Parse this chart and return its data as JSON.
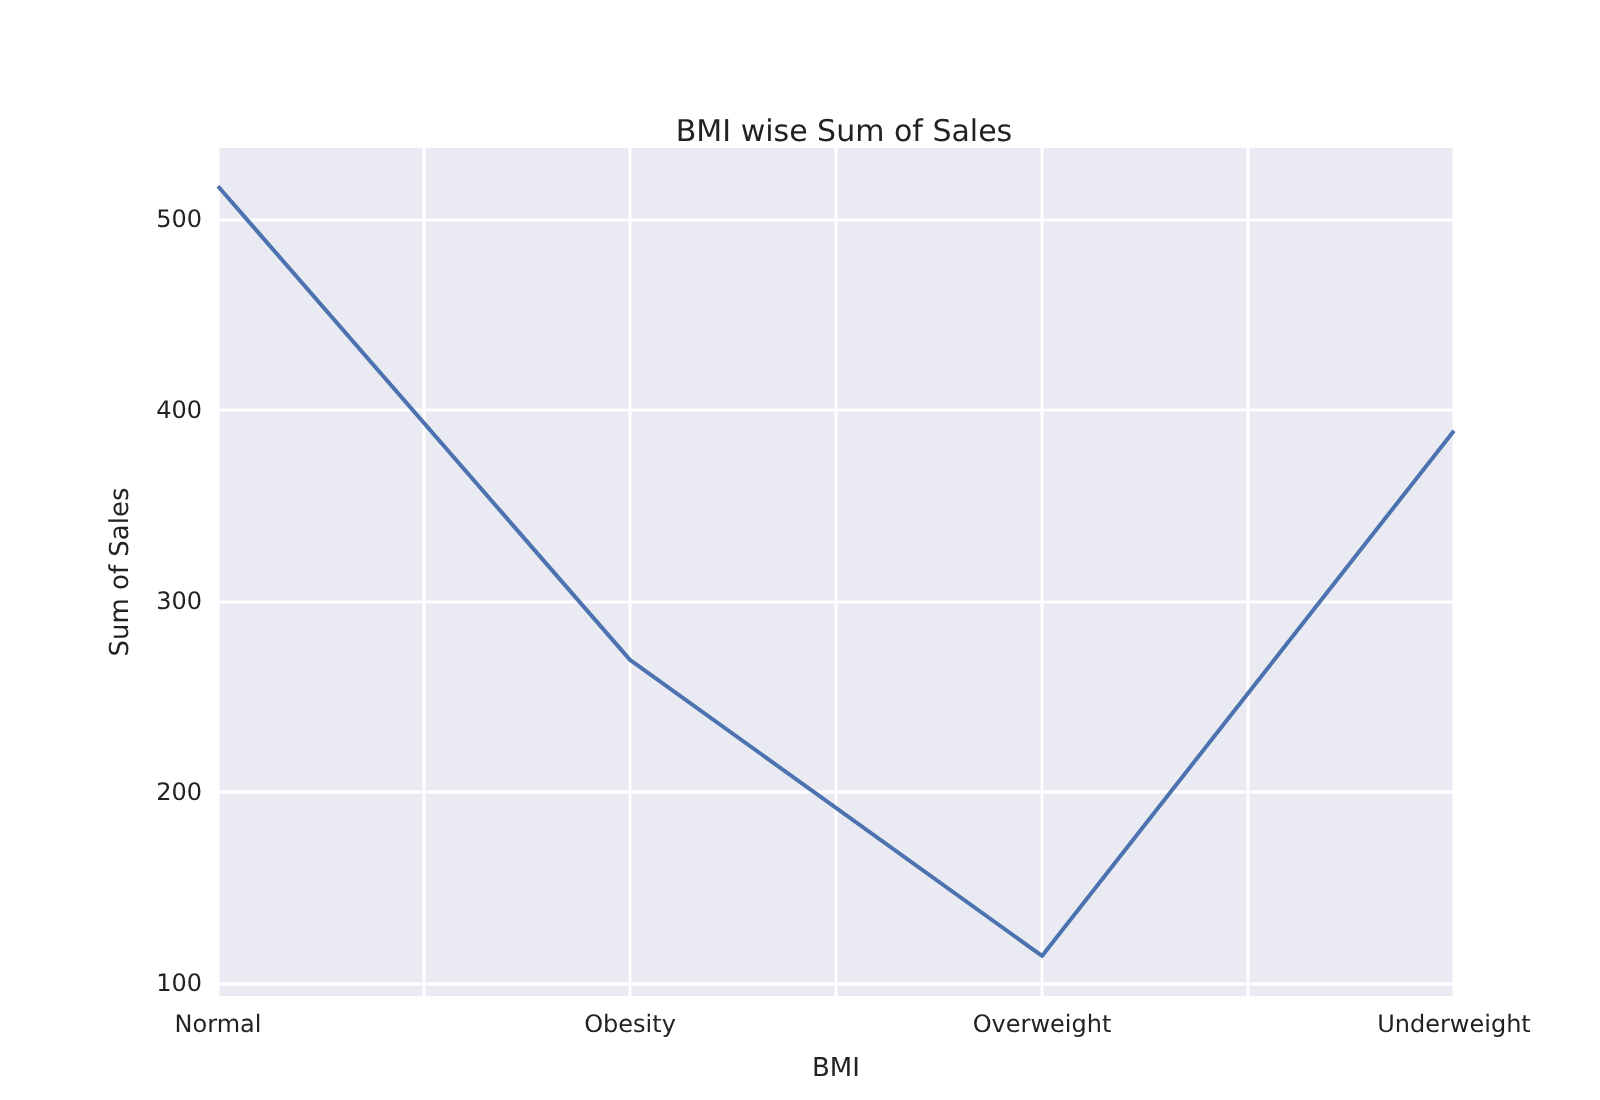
{
  "chart_data": {
    "type": "line",
    "title": "BMI wise Sum of Sales",
    "xlabel": "BMI",
    "ylabel": "Sum of Sales",
    "categories": [
      "Normal",
      "Obesity",
      "Overweight",
      "Underweight"
    ],
    "series": [
      {
        "color": "#4c72b0",
        "values": [
          517,
          269,
          114,
          389
        ]
      }
    ],
    "ylim": [
      93,
      537
    ],
    "yticks": [
      100,
      200,
      300,
      400,
      500
    ],
    "grid": true
  }
}
